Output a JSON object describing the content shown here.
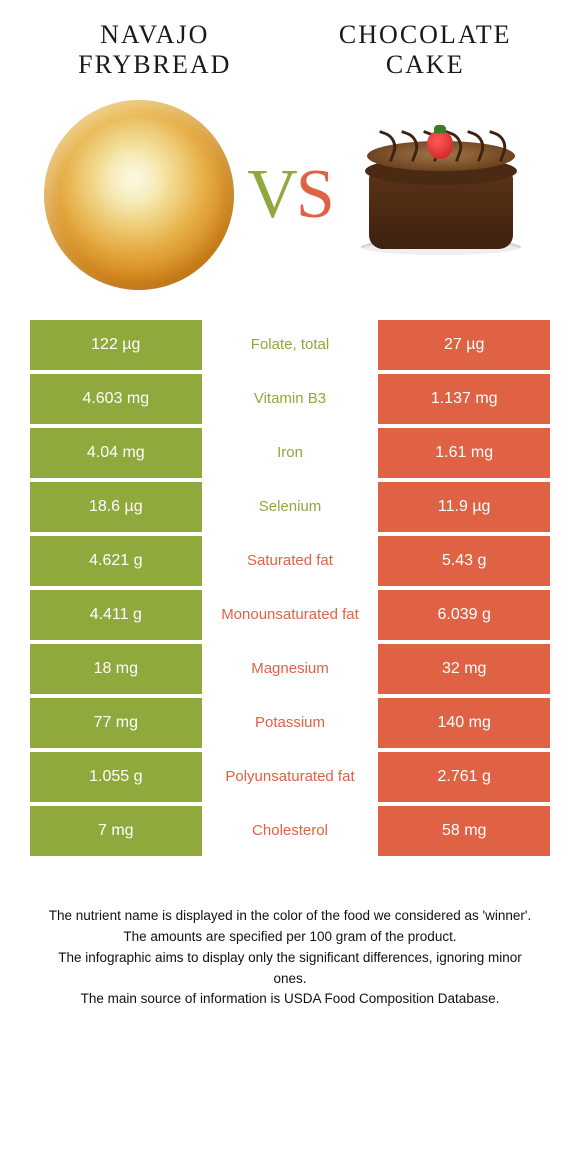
{
  "colors": {
    "green": "#90a93c",
    "orange": "#e06244"
  },
  "titles": {
    "left": "NAVAJO FRYBREAD",
    "right": "CHOCOLATE CAKE"
  },
  "vs": {
    "v": "V",
    "s": "S"
  },
  "rows": [
    {
      "left": "122 µg",
      "label": "Folate, total",
      "right": "27 µg",
      "winner": "left"
    },
    {
      "left": "4.603 mg",
      "label": "Vitamin B3",
      "right": "1.137 mg",
      "winner": "left"
    },
    {
      "left": "4.04 mg",
      "label": "Iron",
      "right": "1.61 mg",
      "winner": "left"
    },
    {
      "left": "18.6 µg",
      "label": "Selenium",
      "right": "11.9 µg",
      "winner": "left"
    },
    {
      "left": "4.621 g",
      "label": "Saturated fat",
      "right": "5.43 g",
      "winner": "right"
    },
    {
      "left": "4.411 g",
      "label": "Monounsaturated fat",
      "right": "6.039 g",
      "winner": "right"
    },
    {
      "left": "18 mg",
      "label": "Magnesium",
      "right": "32 mg",
      "winner": "right"
    },
    {
      "left": "77 mg",
      "label": "Potassium",
      "right": "140 mg",
      "winner": "right"
    },
    {
      "left": "1.055 g",
      "label": "Polyunsaturated fat",
      "right": "2.761 g",
      "winner": "right"
    },
    {
      "left": "7 mg",
      "label": "Cholesterol",
      "right": "58 mg",
      "winner": "right"
    }
  ],
  "footnote": {
    "l1": "The nutrient name is displayed in the color of the food we considered as 'winner'.",
    "l2": "The amounts are specified per 100 gram of the product.",
    "l3": "The infographic aims to display only the significant differences, ignoring minor ones.",
    "l4": "The main source of information is USDA Food Composition Database."
  }
}
